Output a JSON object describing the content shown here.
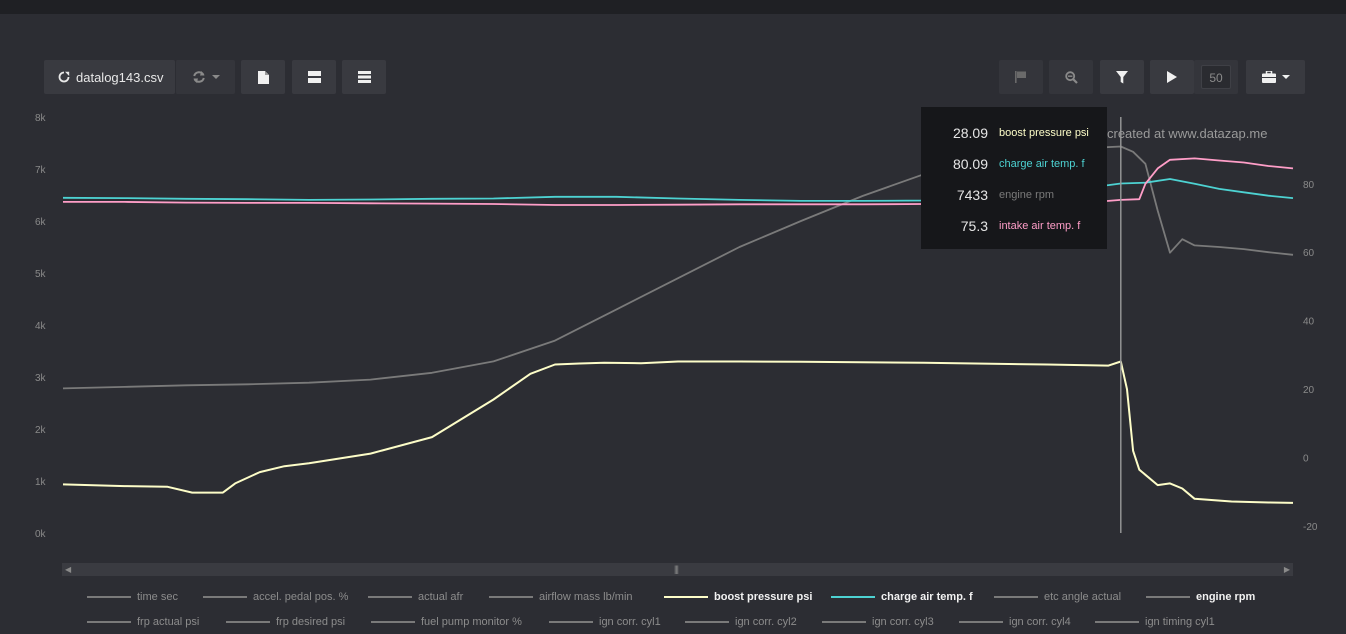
{
  "toolbar": {
    "file_label": "datalog143.csv",
    "speed_value": "50"
  },
  "watermark": "created at www.datazap.me",
  "tooltip": {
    "rows": [
      {
        "value": "28.09",
        "name": "boost pressure psi",
        "color": "#fdfdc8"
      },
      {
        "value": "80.09",
        "name": "charge air temp. f",
        "color": "#4dd2d2"
      },
      {
        "value": "7433",
        "name": "engine rpm",
        "color": "#7a7a7a"
      },
      {
        "value": "75.3",
        "name": "intake air temp. f",
        "color": "#ff9ec8"
      }
    ]
  },
  "legend": {
    "row1": [
      {
        "label": "time sec",
        "active": false,
        "color": "#7a7a7a"
      },
      {
        "label": "accel. pedal pos. %",
        "active": false,
        "color": "#7a7a7a"
      },
      {
        "label": "actual afr",
        "active": false,
        "color": "#7a7a7a"
      },
      {
        "label": "airflow mass lb/min",
        "active": false,
        "color": "#7a7a7a"
      },
      {
        "label": "boost pressure psi",
        "active": true,
        "color": "#fdfdc8"
      },
      {
        "label": "charge air temp. f",
        "active": true,
        "color": "#4dd2d2"
      },
      {
        "label": "etc angle actual",
        "active": false,
        "color": "#7a7a7a"
      },
      {
        "label": "engine rpm",
        "active": true,
        "color": "#7a7a7a"
      }
    ],
    "row2": [
      {
        "label": "frp actual psi",
        "active": false,
        "color": "#7a7a7a"
      },
      {
        "label": "frp desired psi",
        "active": false,
        "color": "#7a7a7a"
      },
      {
        "label": "fuel pump monitor %",
        "active": false,
        "color": "#7a7a7a"
      },
      {
        "label": "ign corr. cyl1",
        "active": false,
        "color": "#7a7a7a"
      },
      {
        "label": "ign corr. cyl2",
        "active": false,
        "color": "#7a7a7a"
      },
      {
        "label": "ign corr. cyl3",
        "active": false,
        "color": "#7a7a7a"
      },
      {
        "label": "ign corr. cyl4",
        "active": false,
        "color": "#7a7a7a"
      },
      {
        "label": "ign timing cyl1",
        "active": false,
        "color": "#7a7a7a"
      }
    ]
  },
  "chart_data": {
    "type": "line",
    "left_axis": {
      "ticks": [
        "0k",
        "1k",
        "2k",
        "3k",
        "4k",
        "5k",
        "6k",
        "7k",
        "8k"
      ],
      "range": [
        0,
        8000
      ]
    },
    "right_axis": {
      "ticks": [
        "-20",
        "0",
        "20",
        "40",
        "60",
        "80"
      ],
      "range": [
        -22,
        99.5
      ]
    },
    "grid": false,
    "cursor_index": 0.86,
    "series": [
      {
        "name": "engine rpm",
        "axis": "left",
        "color": "#7a7a7a",
        "x": [
          0,
          0.05,
          0.1,
          0.15,
          0.2,
          0.25,
          0.3,
          0.35,
          0.4,
          0.45,
          0.5,
          0.55,
          0.6,
          0.65,
          0.7,
          0.75,
          0.8,
          0.82,
          0.84,
          0.86,
          0.87,
          0.88,
          0.89,
          0.9,
          0.91,
          0.92,
          0.94,
          0.96,
          0.98,
          1.0
        ],
        "values": [
          2780,
          2810,
          2840,
          2860,
          2890,
          2950,
          3080,
          3300,
          3700,
          4300,
          4900,
          5500,
          6000,
          6480,
          6900,
          7150,
          7300,
          7380,
          7410,
          7433,
          7330,
          7100,
          6200,
          5390,
          5650,
          5530,
          5500,
          5460,
          5400,
          5350
        ]
      },
      {
        "name": "boost pressure psi",
        "axis": "right",
        "color": "#fdfdc8",
        "x": [
          0,
          0.05,
          0.085,
          0.105,
          0.13,
          0.14,
          0.16,
          0.18,
          0.2,
          0.25,
          0.3,
          0.35,
          0.38,
          0.4,
          0.42,
          0.44,
          0.47,
          0.5,
          0.55,
          0.6,
          0.7,
          0.8,
          0.85,
          0.86,
          0.865,
          0.87,
          0.875,
          0.88,
          0.89,
          0.9,
          0.91,
          0.92,
          0.95,
          0.98,
          1.0
        ],
        "values": [
          -7.8,
          -8.3,
          -8.5,
          -10.2,
          -10.2,
          -7.5,
          -4.2,
          -2.5,
          -1.6,
          1.2,
          6,
          17,
          24.5,
          27.2,
          27.5,
          27.7,
          27.6,
          28.1,
          28.1,
          28.0,
          27.7,
          27.2,
          26.9,
          28.09,
          20,
          2,
          -3.5,
          -5,
          -8,
          -7.5,
          -9,
          -12,
          -12.8,
          -13.1,
          -13.2
        ]
      },
      {
        "name": "charge air temp. f",
        "axis": "right",
        "color": "#4dd2d2",
        "x": [
          0,
          0.05,
          0.1,
          0.15,
          0.2,
          0.25,
          0.3,
          0.35,
          0.4,
          0.45,
          0.5,
          0.55,
          0.6,
          0.65,
          0.7,
          0.75,
          0.8,
          0.85,
          0.86,
          0.88,
          0.9,
          0.92,
          0.94,
          0.96,
          0.98,
          1.0
        ],
        "values": [
          75.9,
          75.8,
          75.6,
          75.5,
          75.3,
          75.4,
          75.6,
          75.7,
          76.2,
          76.2,
          75.7,
          75.3,
          75.0,
          75.0,
          75.1,
          76.0,
          77.8,
          79.6,
          80.09,
          80.3,
          81.4,
          80.0,
          78.5,
          77.5,
          76.5,
          75.8
        ]
      },
      {
        "name": "intake air temp. f",
        "axis": "right",
        "color": "#ff9ec8",
        "x": [
          0,
          0.05,
          0.1,
          0.15,
          0.2,
          0.25,
          0.3,
          0.35,
          0.4,
          0.45,
          0.5,
          0.55,
          0.6,
          0.65,
          0.7,
          0.75,
          0.8,
          0.85,
          0.86,
          0.875,
          0.88,
          0.89,
          0.9,
          0.92,
          0.94,
          0.96,
          0.98,
          1.0
        ],
        "values": [
          74.7,
          74.7,
          74.5,
          74.4,
          74.4,
          74.3,
          74.2,
          74.1,
          73.8,
          73.8,
          73.9,
          74.0,
          74.0,
          74.0,
          74.1,
          74.3,
          74.6,
          75.0,
          75.3,
          75.5,
          80,
          84.5,
          87,
          87.4,
          86.8,
          86.2,
          85.2,
          84.5
        ]
      }
    ]
  }
}
